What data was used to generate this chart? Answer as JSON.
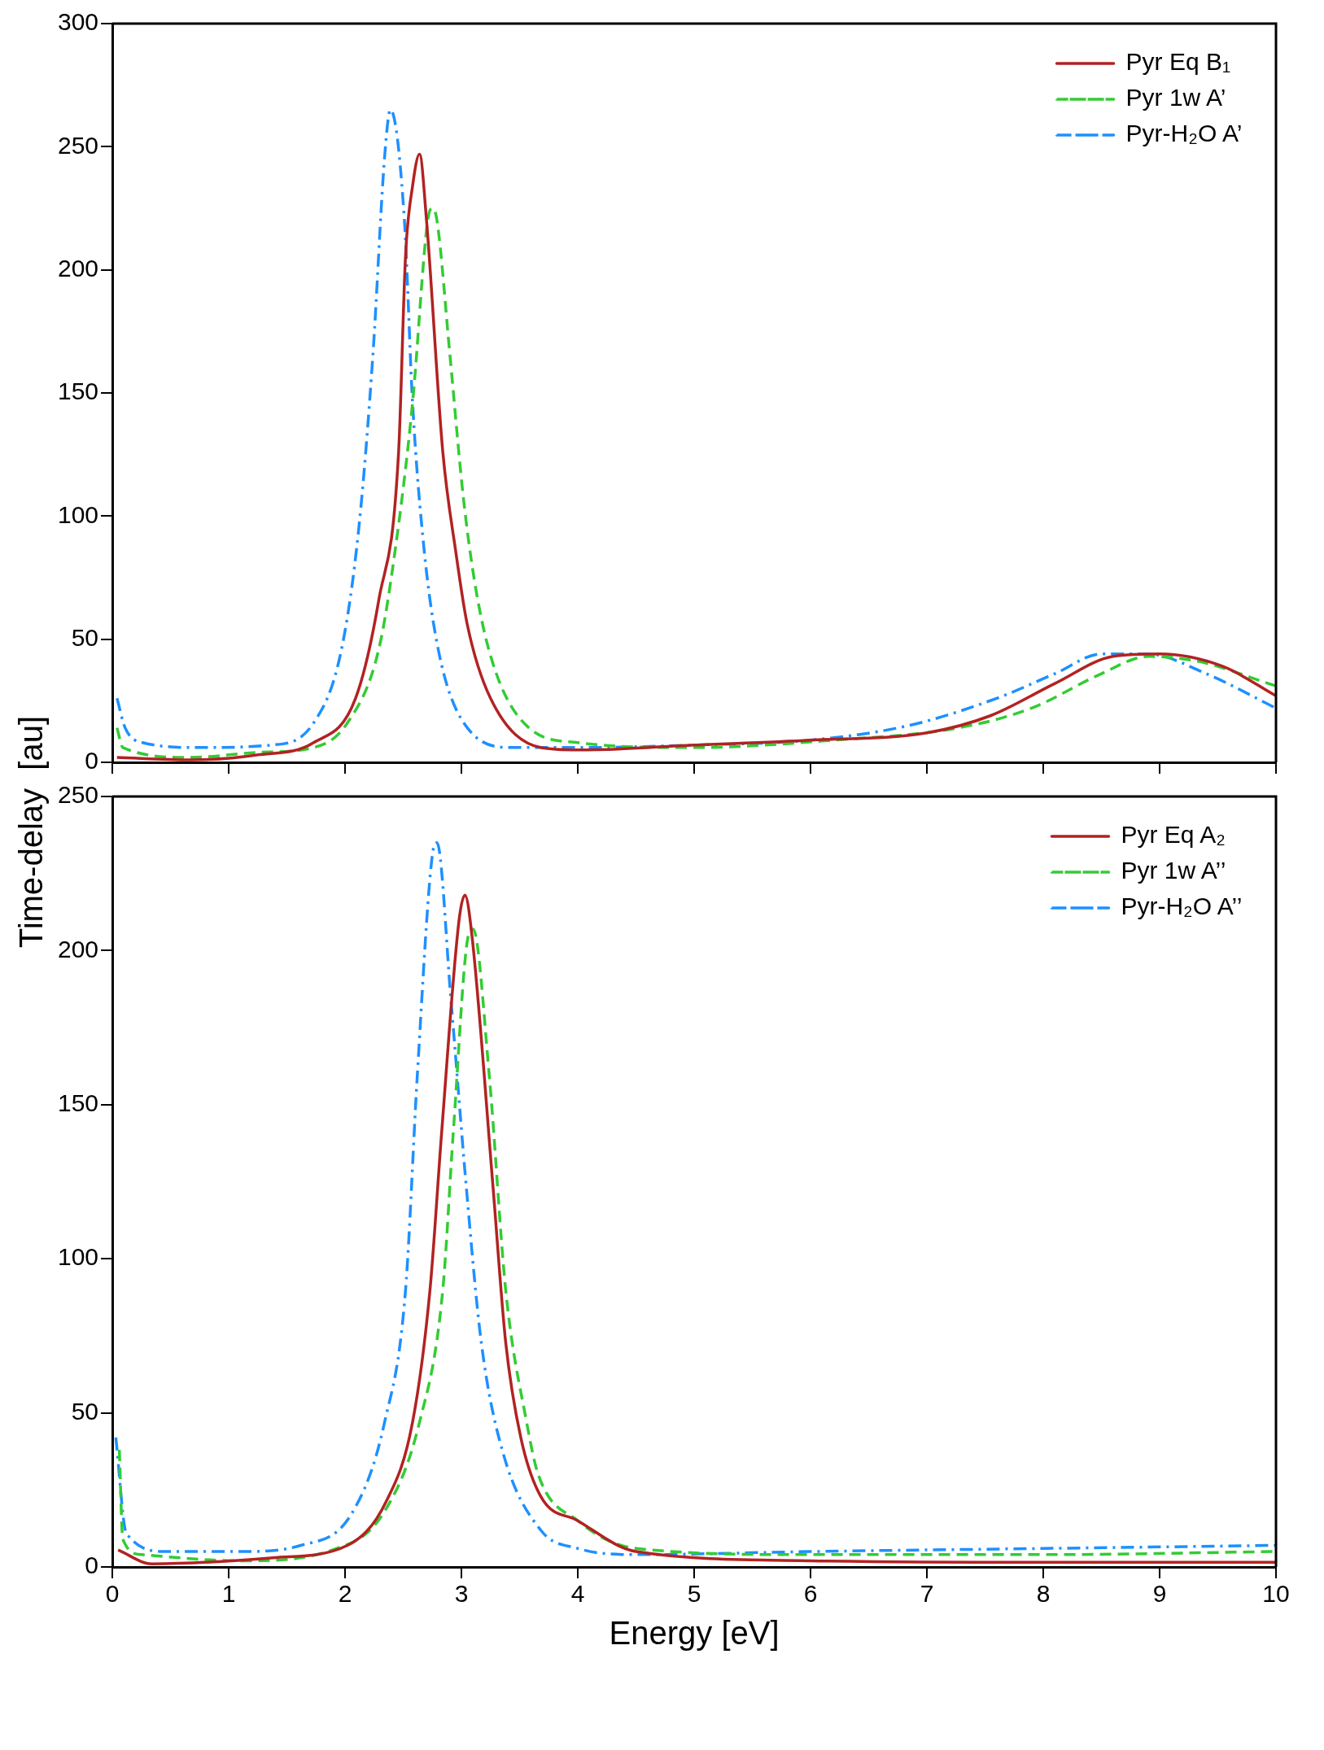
{
  "chart_data": [
    {
      "type": "line",
      "ylabel": "Time-delay  [au]",
      "xlim": [
        0,
        10
      ],
      "xticks": [
        0,
        1,
        2,
        3,
        4,
        5,
        6,
        7,
        8,
        9,
        10
      ],
      "ylim": [
        0,
        300
      ],
      "yticks": [
        0,
        50,
        100,
        150,
        200,
        250,
        300
      ],
      "tick_labels": "y",
      "legend": "top right",
      "series": [
        {
          "name": "Pyr Eq B₁",
          "color": "#b22222",
          "line_style": "solid",
          "x": [
            0.04,
            0.67,
            1.24,
            1.73,
            2.09,
            2.29,
            2.46,
            2.52,
            2.58,
            2.64,
            2.7,
            2.84,
            2.95,
            3.05,
            3.25,
            3.68,
            4.0,
            5.0,
            6.0,
            7.0,
            7.55,
            8.1,
            8.6,
            9.0,
            9.54,
            10.0
          ],
          "values": [
            2,
            1,
            3,
            8,
            26,
            66,
            126,
            206,
            234,
            247,
            220,
            126,
            86,
            56,
            26,
            6,
            5,
            7,
            9,
            12,
            19,
            32,
            43,
            44,
            39,
            27
          ]
        },
        {
          "name": "Pyr 1w A’",
          "color": "#33cc33",
          "line_style": "dashed",
          "x": [
            0.04,
            0.09,
            0.67,
            1.24,
            1.73,
            2.02,
            2.29,
            2.43,
            2.58,
            2.71,
            2.75,
            2.79,
            2.9,
            3.02,
            3.14,
            3.3,
            3.58,
            4.0,
            5.0,
            6.2,
            7.27,
            7.9,
            8.5,
            8.9,
            9.33,
            10.0
          ],
          "values": [
            14,
            6,
            2,
            4,
            6,
            16,
            46,
            86,
            146,
            220,
            225,
            220,
            166,
            106,
            66,
            36,
            14,
            8,
            6,
            9,
            14,
            22,
            36,
            43,
            41,
            31
          ]
        },
        {
          "name": "Pyr-H₂O A’",
          "color": "#1e90ff",
          "line_style": "dashdot",
          "x": [
            0.04,
            0.11,
            0.26,
            0.75,
            1.36,
            1.73,
            1.97,
            2.12,
            2.24,
            2.34,
            2.39,
            2.51,
            2.58,
            2.68,
            2.8,
            3.02,
            3.44,
            4.0,
            5.0,
            6.0,
            6.85,
            7.6,
            8.1,
            8.5,
            8.9,
            9.4,
            10.0
          ],
          "values": [
            26,
            14,
            8,
            6,
            7,
            16,
            46,
            96,
            166,
            246,
            265,
            220,
            146,
            86,
            46,
            16,
            6,
            6,
            7,
            9,
            15,
            26,
            36,
            44,
            44,
            36,
            22
          ]
        }
      ]
    },
    {
      "type": "line",
      "xlabel": "Energy [eV]",
      "xlim": [
        0,
        10
      ],
      "xticks": [
        0,
        1,
        2,
        3,
        4,
        5,
        6,
        7,
        8,
        9,
        10
      ],
      "ylim": [
        0,
        250
      ],
      "yticks": [
        0,
        50,
        100,
        150,
        200,
        250
      ],
      "legend": "top right",
      "series": [
        {
          "name": "Pyr Eq A₂",
          "color": "#b22222",
          "line_style": "solid",
          "x": [
            0.05,
            0.34,
            1.38,
            2.02,
            2.35,
            2.58,
            2.73,
            2.83,
            2.98,
            3.03,
            3.09,
            3.27,
            3.38,
            3.51,
            3.68,
            4.0,
            4.5,
            6,
            8,
            10
          ],
          "values": [
            5.5,
            1,
            3,
            7,
            21,
            47,
            90,
            141,
            210,
            218,
            205,
            124,
            73,
            42,
            23,
            15,
            5,
            2,
            1.5,
            1.5
          ]
        },
        {
          "name": "Pyr 1w A’’",
          "color": "#33cc33",
          "line_style": "dashed",
          "x": [
            0.06,
            0.09,
            0.25,
            1.12,
            1.89,
            2.33,
            2.64,
            2.84,
            2.93,
            3.06,
            3.1,
            3.24,
            3.38,
            3.56,
            3.66,
            4.0,
            4.5,
            6,
            8,
            10
          ],
          "values": [
            38,
            9,
            4,
            2,
            5.5,
            17.5,
            47,
            90,
            141,
            205,
            207,
            159,
            90,
            47,
            30,
            15,
            6,
            4,
            4,
            5
          ]
        },
        {
          "name": "Pyr-H₂O A’’",
          "color": "#1e90ff",
          "line_style": "dashdot",
          "x": [
            0.03,
            0.12,
            0.46,
            1.1,
            1.62,
            2.06,
            2.34,
            2.52,
            2.62,
            2.75,
            2.79,
            2.91,
            3.04,
            3.17,
            3.35,
            3.68,
            4.0,
            4.5,
            6,
            8,
            10
          ],
          "values": [
            42,
            11,
            5,
            5,
            7,
            17.5,
            47,
            90,
            159,
            231,
            235,
            184,
            124,
            73,
            38,
            12,
            6,
            4,
            5,
            6,
            7
          ]
        }
      ]
    }
  ]
}
